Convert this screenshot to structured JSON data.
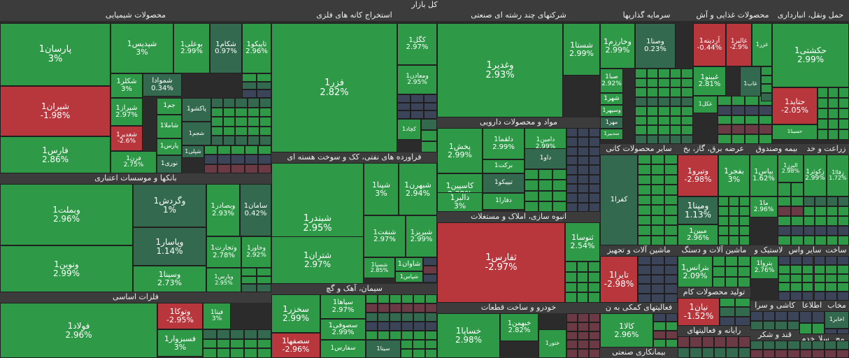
{
  "title": "کل بازار",
  "colors": {
    "up": "#2e9a48",
    "upDark": "#33694e",
    "down": "#b8373d",
    "downDark": "#6b3a44",
    "neutral": "#3b4458",
    "header": "#3c3c3c",
    "pink": "#c05a6a"
  },
  "chart_data": {
    "type": "treemap",
    "title": "کل بازار",
    "sectors": [
      {
        "name": "محصولات شیمیایی"
      },
      {
        "name": "استخراج کانه های فلزی"
      },
      {
        "name": "شرکتهای چند رشته ای صنعتی"
      },
      {
        "name": "سرمایه گذاریها"
      },
      {
        "name": "محصولات غذایی و آش"
      },
      {
        "name": "حمل ونقل، انبارداری"
      },
      {
        "name": "بانکها و موسسات اعتباری"
      },
      {
        "name": "فراورده های نفتی، کک و سوخت هسته ای"
      },
      {
        "name": "مواد و محصولات دارویی"
      },
      {
        "name": "فلزات اساسی"
      },
      {
        "name": "سیمان، آهک و گچ"
      },
      {
        "name": "انبوه سازی، املاک و مستغلات"
      },
      {
        "name": "خودرو و ساخت قطعات"
      },
      {
        "name": "سایر محصولات کانی"
      },
      {
        "name": "عرضه برق، گاز، بخ"
      },
      {
        "name": "بیمه وصندوق"
      },
      {
        "name": "زراعت و خد"
      },
      {
        "name": "ماشین آلات و تجهیز"
      },
      {
        "name": "ماشین آلات و دستگ"
      },
      {
        "name": "لاستیک و"
      },
      {
        "name": "سایر واس"
      },
      {
        "name": "ساخت"
      },
      {
        "name": "تولید محصولات کام"
      },
      {
        "name": "فعالیتهای کمکی به ن"
      },
      {
        "name": "کاشی و سرا"
      },
      {
        "name": "اطلاعا"
      },
      {
        "name": "مخاب"
      },
      {
        "name": "قند و شکر"
      },
      {
        "name": "رایانه و فعالیتهای"
      },
      {
        "name": "بیمانکاری صنعتی"
      },
      {
        "name": "خدم"
      },
      {
        "name": "سلا"
      },
      {
        "name": "مح"
      }
    ],
    "stocks": [
      {
        "symbol": "پارسان1",
        "change": 3,
        "label": "3%"
      },
      {
        "symbol": "شپدیس1",
        "change": 3,
        "label": "3%"
      },
      {
        "symbol": "بوعلی1",
        "change": 2.99,
        "label": "2.99%"
      },
      {
        "symbol": "شکام1",
        "change": 0.97,
        "label": "0.97%"
      },
      {
        "symbol": "تاپیکو1",
        "change": 2.96,
        "label": "2.96%"
      },
      {
        "symbol": "شیران1",
        "change": -1.98,
        "label": "-1.98%"
      },
      {
        "symbol": "شکلر1",
        "change": 3,
        "label": "3%"
      },
      {
        "symbol": "شموادا",
        "change": 0.34,
        "label": "0.34%"
      },
      {
        "symbol": "جم1",
        "change": null,
        "label": ""
      },
      {
        "symbol": "پاکشو1",
        "change": null,
        "label": ""
      },
      {
        "symbol": "شیراز1",
        "change": 2.97,
        "label": "2.97%"
      },
      {
        "symbol": "شاملا1",
        "change": null,
        "label": ""
      },
      {
        "symbol": "شجم1",
        "change": null,
        "label": ""
      },
      {
        "symbol": "شغدیر1",
        "change": -2.6,
        "label": "-2.6%"
      },
      {
        "symbol": "پارس1",
        "change": null,
        "label": ""
      },
      {
        "symbol": "شپلی1",
        "change": null,
        "label": ""
      },
      {
        "symbol": "فارس1",
        "change": 2.86,
        "label": "2.86%"
      },
      {
        "symbol": "فرن1",
        "change": 2.75,
        "label": "2.75%"
      },
      {
        "symbol": "نوری1",
        "change": null,
        "label": ""
      },
      {
        "symbol": "فزر1",
        "change": 2.82,
        "label": "2.82%"
      },
      {
        "symbol": "کگل1",
        "change": 2.97,
        "label": "2.97%"
      },
      {
        "symbol": "ومعادن1",
        "change": 2.95,
        "label": "2.95%"
      },
      {
        "symbol": "کچاد1",
        "change": null,
        "label": ""
      },
      {
        "symbol": "وغدیر1",
        "change": 2.93,
        "label": "2.93%"
      },
      {
        "symbol": "شستا1",
        "change": 2.99,
        "label": "2.99%"
      },
      {
        "symbol": "وخارزم1",
        "change": 2.99,
        "label": "2.99%"
      },
      {
        "symbol": "وصنا1",
        "change": 0.23,
        "label": "0.23%"
      },
      {
        "symbol": "صبا1",
        "change": 2.92,
        "label": "2.92%"
      },
      {
        "symbol": "شهر1",
        "change": null,
        "label": ""
      },
      {
        "symbol": "وسپهر1",
        "change": null,
        "label": ""
      },
      {
        "symbol": "مهر1",
        "change": null,
        "label": ""
      },
      {
        "symbol": "سدبیر1",
        "change": null,
        "label": ""
      },
      {
        "symbol": "آردینه1",
        "change": -0.44,
        "label": "-0.44%"
      },
      {
        "symbol": "غالبر1",
        "change": -2.9,
        "label": "-2.9%"
      },
      {
        "symbol": "غزر1",
        "change": null,
        "label": ""
      },
      {
        "symbol": "غبینو1",
        "change": 2.81,
        "label": "2.81%"
      },
      {
        "symbol": "غاب1",
        "change": null,
        "label": ""
      },
      {
        "symbol": "غکل1",
        "change": null,
        "label": ""
      },
      {
        "symbol": "حکشتی1",
        "change": 2.99,
        "label": "2.99%"
      },
      {
        "symbol": "حتاید1",
        "change": -2.05,
        "label": "-2.05%"
      },
      {
        "symbol": "حسینا1",
        "change": null,
        "label": ""
      },
      {
        "symbol": "وبملت1",
        "change": 2.96,
        "label": "2.96%"
      },
      {
        "symbol": "وگردش1",
        "change": 1,
        "label": "1%"
      },
      {
        "symbol": "وبصادر1",
        "change": 2.93,
        "label": "2.93%"
      },
      {
        "symbol": "سامان1",
        "change": 0.42,
        "label": "0.42%"
      },
      {
        "symbol": "ونوین1",
        "change": 2.99,
        "label": "2.99%"
      },
      {
        "symbol": "وپاسار1",
        "change": 1.14,
        "label": "1.14%"
      },
      {
        "symbol": "وتجارت1",
        "change": 2.78,
        "label": "2.78%"
      },
      {
        "symbol": "وخاور1",
        "change": 2.92,
        "label": "2.92%"
      },
      {
        "symbol": "وسینا1",
        "change": 2.73,
        "label": "2.73%"
      },
      {
        "symbol": "وپارس1",
        "change": 2.95,
        "label": "2.95%"
      },
      {
        "symbol": "شبندر1",
        "change": 2.95,
        "label": "2.95%"
      },
      {
        "symbol": "شپنا1",
        "change": 3,
        "label": "3%"
      },
      {
        "symbol": "شبهرن1",
        "change": 2.94,
        "label": "2.94%"
      },
      {
        "symbol": "شنفت1",
        "change": 2.97,
        "label": "2.97%"
      },
      {
        "symbol": "شبریز1",
        "change": 2.99,
        "label": "2.99%"
      },
      {
        "symbol": "شتران1",
        "change": 2.97,
        "label": "2.97%"
      },
      {
        "symbol": "شسپا1",
        "change": 2.85,
        "label": "2.85%"
      },
      {
        "symbol": "شاوان1",
        "change": null,
        "label": ""
      },
      {
        "symbol": "شپاس1",
        "change": null,
        "label": ""
      },
      {
        "symbol": "پخش1",
        "change": 2.99,
        "label": "2.99%"
      },
      {
        "symbol": "دلقما1",
        "change": 2.99,
        "label": "2.99%"
      },
      {
        "symbol": "دامین1",
        "change": 2.99,
        "label": "2.99%"
      },
      {
        "symbol": "داو1",
        "change": null,
        "label": ""
      },
      {
        "symbol": "برکت1",
        "change": null,
        "label": ""
      },
      {
        "symbol": "کاسپین1",
        "change": 2.39,
        "label": "2.39%"
      },
      {
        "symbol": "تیپیکو1",
        "change": null,
        "label": ""
      },
      {
        "symbol": "دالبر1",
        "change": 3,
        "label": "3%"
      },
      {
        "symbol": "دفارا1",
        "change": null,
        "label": ""
      },
      {
        "symbol": "فولاد1",
        "change": 2.96,
        "label": "2.96%"
      },
      {
        "symbol": "وتوکا1",
        "change": -2.95,
        "label": "-2.95%"
      },
      {
        "symbol": "فیتا1",
        "change": 3,
        "label": "3%"
      },
      {
        "symbol": "فسبزوار1",
        "change": 3,
        "label": "3%"
      },
      {
        "symbol": "سخزر1",
        "change": 2.99,
        "label": "2.99%"
      },
      {
        "symbol": "سپاها1",
        "change": 2.97,
        "label": "2.97%"
      },
      {
        "symbol": "سصوفی1",
        "change": 2.99,
        "label": "2.99%"
      },
      {
        "symbol": "سصفها1",
        "change": -2.96,
        "label": "-2.96%"
      },
      {
        "symbol": "سفارس1",
        "change": null,
        "label": ""
      },
      {
        "symbol": "سیتا1",
        "change": null,
        "label": ""
      },
      {
        "symbol": "ثفارس1",
        "change": -2.97,
        "label": "-2.97%"
      },
      {
        "symbol": "ثنوسا1",
        "change": 2.54,
        "label": "2.54%"
      },
      {
        "symbol": "خساپا1",
        "change": 2.98,
        "label": "2.98%"
      },
      {
        "symbol": "خبهمن1",
        "change": 2.82,
        "label": "2.82%"
      },
      {
        "symbol": "ختور1",
        "change": null,
        "label": ""
      },
      {
        "symbol": "کفرا1",
        "change": null,
        "label": ""
      },
      {
        "symbol": "وتیرو1",
        "change": -2.98,
        "label": "-2.98%"
      },
      {
        "symbol": "بفجر1",
        "change": 3,
        "label": "3%"
      },
      {
        "symbol": "ومپنا1",
        "change": 1.13,
        "label": "1.13%"
      },
      {
        "symbol": "مبین1",
        "change": 2.96,
        "label": "2.96%"
      },
      {
        "symbol": "بیاس1",
        "change": 1.62,
        "label": "1.62%"
      },
      {
        "symbol": "البرز1",
        "change": 2.98,
        "label": "2.98%"
      },
      {
        "symbol": "ما1",
        "change": 2.96,
        "label": "2.96%"
      },
      {
        "symbol": "زکوثر1",
        "change": 2.99,
        "label": "2.99%"
      },
      {
        "symbol": "زقاا1",
        "change": 1.72,
        "label": "1.72%"
      },
      {
        "symbol": "تایرا1",
        "change": -2.98,
        "label": "-2.98%"
      },
      {
        "symbol": "بترانس1",
        "change": 2.09,
        "label": "2.09%"
      },
      {
        "symbol": "پتروا1",
        "change": 2.76,
        "label": "2.76%"
      },
      {
        "symbol": "نیان1",
        "change": -1.52,
        "label": "-1.52%"
      },
      {
        "symbol": "کالا1",
        "change": 2.96,
        "label": "2.96%"
      },
      {
        "symbol": "اخابر1",
        "change": null,
        "label": ""
      }
    ]
  }
}
